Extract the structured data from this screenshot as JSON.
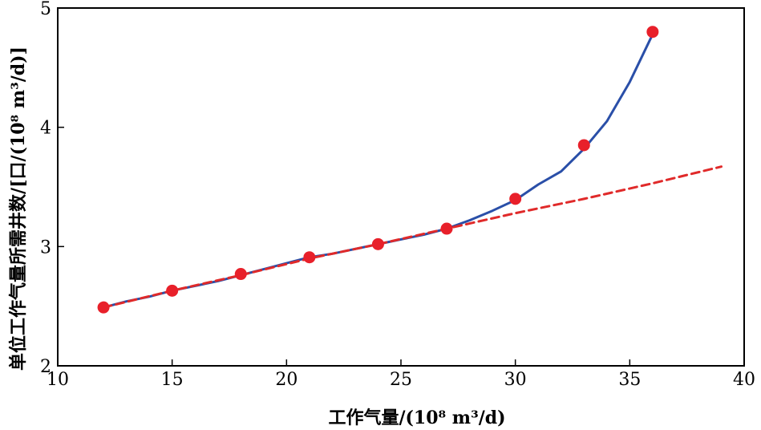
{
  "chart_data": {
    "type": "line",
    "xlabel": "工作气量/(10⁸ m³/d)",
    "ylabel": "单位工作气量所需井数/[口/(10⁸ m³/d)]",
    "xlim": [
      10,
      40
    ],
    "ylim": [
      2,
      5
    ],
    "xticks": [
      "10",
      "15",
      "20",
      "25",
      "30",
      "35",
      "40"
    ],
    "yticks": [
      "2",
      "3",
      "4",
      "5"
    ],
    "grid": false,
    "series": [
      {
        "style": "solid",
        "color": "#2a4fa8",
        "x": [
          12,
          13,
          14,
          15,
          16,
          17,
          18,
          19,
          20,
          21,
          22,
          23,
          24,
          25,
          26,
          27,
          28,
          29,
          30,
          31,
          32,
          33,
          34,
          35,
          36
        ],
        "y": [
          2.49,
          2.54,
          2.58,
          2.63,
          2.67,
          2.71,
          2.76,
          2.81,
          2.86,
          2.91,
          2.94,
          2.98,
          3.02,
          3.06,
          3.1,
          3.15,
          3.22,
          3.3,
          3.39,
          3.52,
          3.63,
          3.82,
          4.05,
          4.38,
          4.78
        ]
      },
      {
        "style": "dashed",
        "color": "#e02a2a",
        "x": [
          12,
          15,
          18,
          21,
          24,
          27,
          30,
          33,
          36,
          39
        ],
        "y": [
          2.49,
          2.63,
          2.76,
          2.9,
          3.02,
          3.15,
          3.28,
          3.4,
          3.53,
          3.67
        ]
      },
      {
        "style": "markers",
        "color": "#e8202a",
        "x": [
          12,
          15,
          18,
          21,
          24,
          27,
          30,
          33,
          36
        ],
        "y": [
          2.49,
          2.63,
          2.77,
          2.91,
          3.02,
          3.15,
          3.4,
          3.85,
          4.8
        ]
      }
    ]
  }
}
